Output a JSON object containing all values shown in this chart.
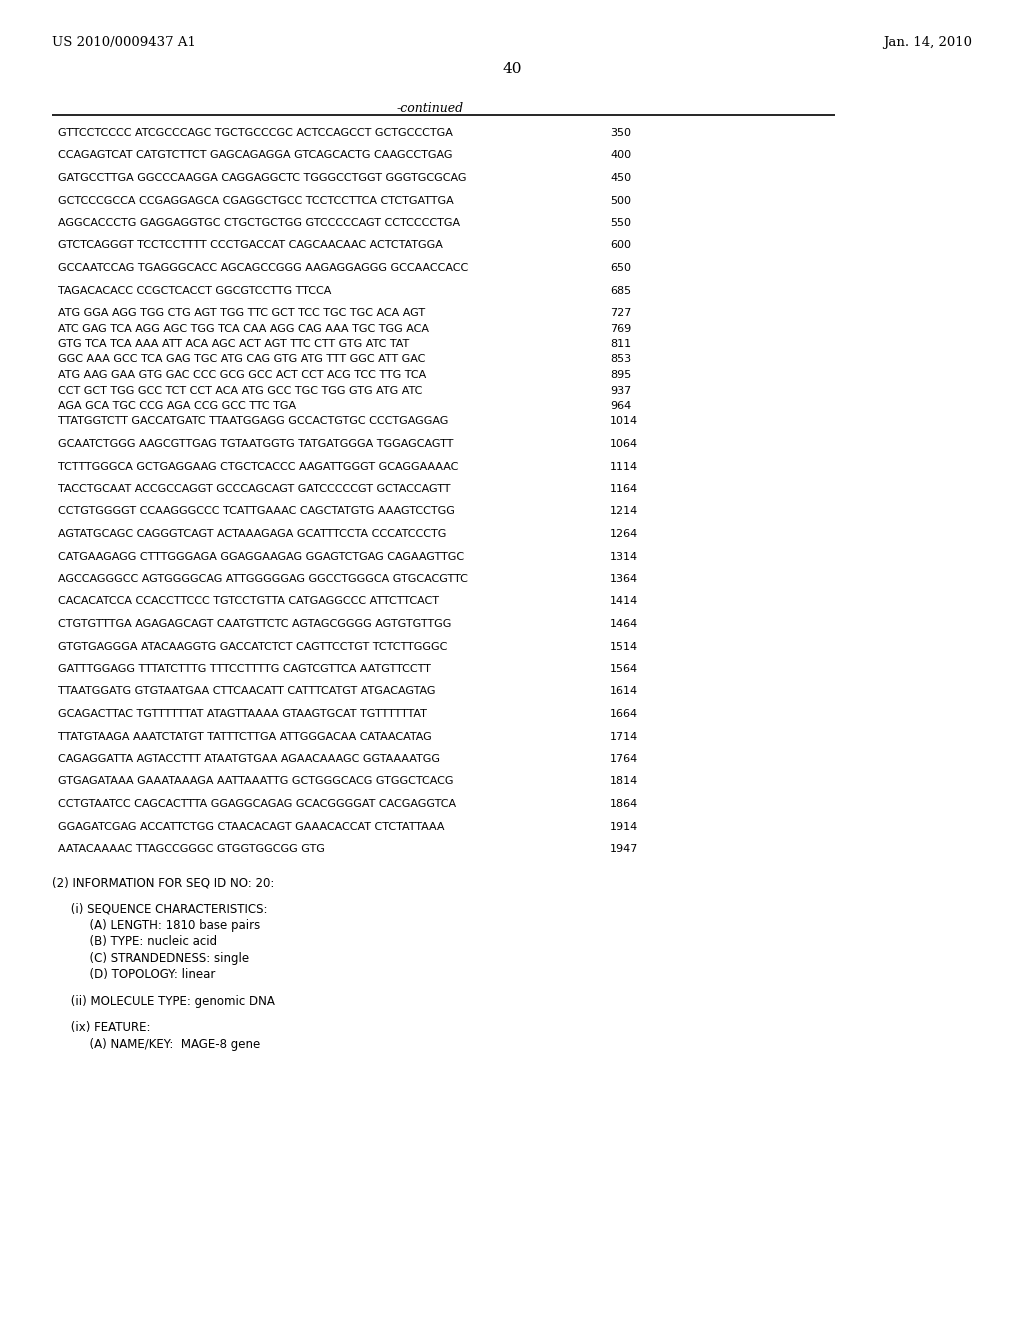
{
  "patent_left": "US 2010/0009437 A1",
  "patent_right": "Jan. 14, 2010",
  "page_number": "40",
  "continued_label": "-continued",
  "background_color": "#ffffff",
  "text_color": "#000000",
  "sequence_lines": [
    {
      "seq": "GTTCCTCCCC ATCGCCCAGC TGCTGCCCGC ACTCCAGCCT GCTGCCCTGA",
      "num": "350",
      "tight": false
    },
    {
      "seq": "CCAGAGTCAT CATGTCTTCT GAGCAGAGGA GTCAGCACTG CAAGCCTGAG",
      "num": "400",
      "tight": false
    },
    {
      "seq": "GATGCCTTGA GGCCCAAGGA CAGGAGGCTC TGGGCCTGGT GGGTGCGCAG",
      "num": "450",
      "tight": false
    },
    {
      "seq": "GCTCCCGCCA CCGAGGAGCA CGAGGCTGCC TCCTCCTTCA CTCTGATTGA",
      "num": "500",
      "tight": false
    },
    {
      "seq": "AGGCACCCTG GAGGAGGTGC CTGCTGCTGG GTCCCCCAGT CCTCCCCTGA",
      "num": "550",
      "tight": false
    },
    {
      "seq": "GTCTCAGGGT TCCTCCTTTT CCCTGACCAT CAGCAACAAC ACTCTATGGA",
      "num": "600",
      "tight": false
    },
    {
      "seq": "GCCAATCCAG TGAGGGCACC AGCAGCCGGG AAGAGGAGGG GCCAACCACC",
      "num": "650",
      "tight": false
    },
    {
      "seq": "TAGACACACC CCGCTCACCT GGCGTCCTTG TTCCA",
      "num": "685",
      "tight": false
    },
    {
      "seq": "ATG GGA AGG TGG CTG AGT TGG TTC GCT TCC TGC TGC ACA AGT",
      "num": "727",
      "tight": true
    },
    {
      "seq": "ATC GAG TCA AGG AGC TGG TCA CAA AGG CAG AAA TGC TGG ACA",
      "num": "769",
      "tight": true
    },
    {
      "seq": "GTG TCA TCA AAA ATT ACA AGC ACT AGT TTC CTT GTG ATC TAT",
      "num": "811",
      "tight": true
    },
    {
      "seq": "GGC AAA GCC TCA GAG TGC ATG CAG GTG ATG TTT GGC ATT GAC",
      "num": "853",
      "tight": true
    },
    {
      "seq": "ATG AAG GAA GTG GAC CCC GCG GCC ACT CCT ACG TCC TTG TCA",
      "num": "895",
      "tight": true
    },
    {
      "seq": "CCT GCT TGG GCC TCT CCT ACA ATG GCC TGC TGG GTG ATG ATC",
      "num": "937",
      "tight": true
    },
    {
      "seq": "AGA GCA TGC CCG AGA CCG GCC TTC TGA",
      "num": "964",
      "tight": true
    },
    {
      "seq": "TTATGGTCTT GACCATGATC TTAATGGAGG GCCACTGTGC CCCTGAGGAG",
      "num": "1014",
      "tight": true
    },
    {
      "seq": "GCAATCTGGG AAGCGTTGAG TGTAATGGTG TATGATGGGA TGGAGCAGTT",
      "num": "1064",
      "tight": false
    },
    {
      "seq": "TCTTTGGGCA GCTGAGGAAG CTGCTCACCC AAGATTGGGT GCAGGAAAAC",
      "num": "1114",
      "tight": false
    },
    {
      "seq": "TACCTGCAAT ACCGCCAGGT GCCCAGCAGT GATCCCCCGT GCTACCAGTT",
      "num": "1164",
      "tight": false
    },
    {
      "seq": "CCTGTGGGGT CCAAGGGCCC TCATTGAAAC CAGCTATGTG AAAGTCCTGG",
      "num": "1214",
      "tight": false
    },
    {
      "seq": "AGTATGCAGC CAGGGTCAGT ACTAAAGAGA GCATTTCCTA CCCATCCCTG",
      "num": "1264",
      "tight": false
    },
    {
      "seq": "CATGAAGAGG CTTTGGGAGA GGAGGAAGAG GGAGTCTGAG CAGAAGTTGC",
      "num": "1314",
      "tight": false
    },
    {
      "seq": "AGCCAGGGCC AGTGGGGCAG ATTGGGGGAG GGCCTGGGCA GTGCACGTTC",
      "num": "1364",
      "tight": false
    },
    {
      "seq": "CACACATCCA CCACCTTCCC TGTCCTGTTA CATGAGGCCC ATTCTTCACT",
      "num": "1414",
      "tight": false
    },
    {
      "seq": "CTGTGTTTGA AGAGAGCAGT CAATGTTCTC AGTAGCGGGG AGTGTGTTGG",
      "num": "1464",
      "tight": false
    },
    {
      "seq": "GTGTGAGGGA ATACAAGGTG GACCATCTCT CAGTTCCTGT TCTCTTGGGC",
      "num": "1514",
      "tight": false
    },
    {
      "seq": "GATTTGGAGG TTTATCTTTG TTTCCTTTTG CAGTCGTTCA AATGTTCCTT",
      "num": "1564",
      "tight": false
    },
    {
      "seq": "TTAATGGATG GTGTAATGAA CTTCAACATT CATTTCATGT ATGACAGTAG",
      "num": "1614",
      "tight": false
    },
    {
      "seq": "GCAGACTTAC TGTTTTTTAT ATAGTTAAAA GTAAGTGCAT TGTTTTTTAT",
      "num": "1664",
      "tight": false
    },
    {
      "seq": "TTATGTAAGA AAATCTATGT TATTTCTTGA ATTGGGACAA CATAACATAG",
      "num": "1714",
      "tight": false
    },
    {
      "seq": "CAGAGGATTA AGTACCTTT ATAATGTGAA AGAACAAAGC GGTAAAATGG",
      "num": "1764",
      "tight": false
    },
    {
      "seq": "GTGAGATAAA GAAATAAAGA AATTAAATTG GCTGGGCACG GTGGCTCACG",
      "num": "1814",
      "tight": false
    },
    {
      "seq": "CCTGTAATCC CAGCACTTTA GGAGGCAGAG GCACGGGGAT CACGAGGTCA",
      "num": "1864",
      "tight": false
    },
    {
      "seq": "GGAGATCGAG ACCATTCTGG CTAACACAGT GAAACACCAT CTCTATTAAA",
      "num": "1914",
      "tight": false
    },
    {
      "seq": "AATACAAAAC TTAGCCGGGC GTGGTGGCGG GTG",
      "num": "1947",
      "tight": false
    }
  ],
  "info_lines": [
    {
      "text": "(2) INFORMATION FOR SEQ ID NO: 20:",
      "indent": 0
    },
    {
      "text": "",
      "indent": 0
    },
    {
      "text": "     (i) SEQUENCE CHARACTERISTICS:",
      "indent": 0
    },
    {
      "text": "          (A) LENGTH: 1810 base pairs",
      "indent": 0
    },
    {
      "text": "          (B) TYPE: nucleic acid",
      "indent": 0
    },
    {
      "text": "          (C) STRANDEDNESS: single",
      "indent": 0
    },
    {
      "text": "          (D) TOPOLOGY: linear",
      "indent": 0
    },
    {
      "text": "",
      "indent": 0
    },
    {
      "text": "     (ii) MOLECULE TYPE: genomic DNA",
      "indent": 0
    },
    {
      "text": "",
      "indent": 0
    },
    {
      "text": "     (ix) FEATURE:",
      "indent": 0
    },
    {
      "text": "          (A) NAME/KEY:  MAGE-8 gene",
      "indent": 0
    }
  ]
}
